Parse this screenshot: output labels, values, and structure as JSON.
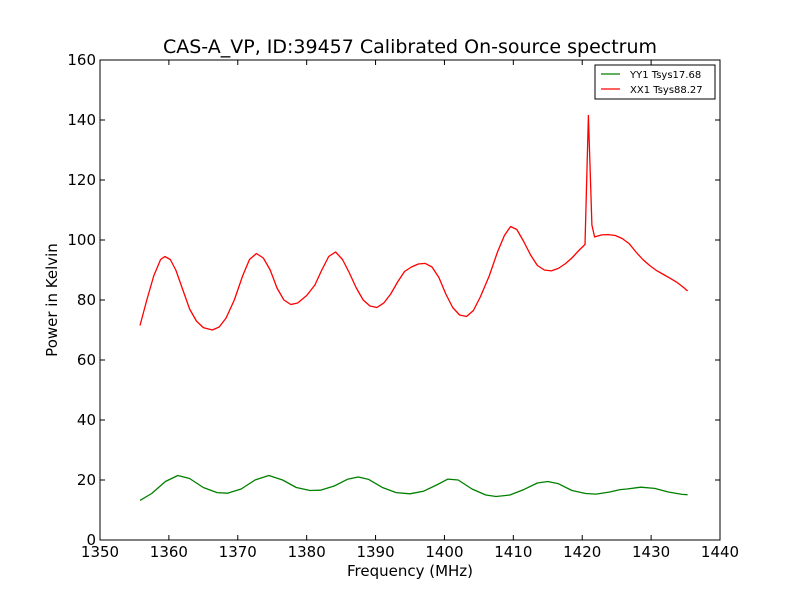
{
  "chart_data": {
    "type": "line",
    "title": "CAS-A_VP, ID:39457 Calibrated On-source spectrum",
    "xlabel": "Frequency (MHz)",
    "ylabel": "Power in Kelvin",
    "xlim": [
      1350,
      1440
    ],
    "ylim": [
      0,
      160
    ],
    "x_ticks": [
      "1350",
      "1360",
      "1370",
      "1380",
      "1390",
      "1400",
      "1410",
      "1420",
      "1430",
      "1440"
    ],
    "y_ticks": [
      "0",
      "20",
      "40",
      "60",
      "80",
      "100",
      "120",
      "140",
      "160"
    ],
    "grid": false,
    "legend_position": "top-right",
    "series": [
      {
        "name": "YY1 Tsys17.68",
        "color": "#008000",
        "points": [
          [
            1355.8,
            13.2
          ],
          [
            1357.5,
            15.5
          ],
          [
            1359.5,
            19.5
          ],
          [
            1361.3,
            21.5
          ],
          [
            1363.0,
            20.5
          ],
          [
            1365.0,
            17.5
          ],
          [
            1367.0,
            15.8
          ],
          [
            1368.5,
            15.6
          ],
          [
            1370.5,
            17.0
          ],
          [
            1372.5,
            20.0
          ],
          [
            1374.5,
            21.5
          ],
          [
            1376.5,
            20.0
          ],
          [
            1378.5,
            17.5
          ],
          [
            1380.5,
            16.5
          ],
          [
            1382.0,
            16.6
          ],
          [
            1384.0,
            18.0
          ],
          [
            1386.0,
            20.3
          ],
          [
            1387.5,
            21.0
          ],
          [
            1389.0,
            20.2
          ],
          [
            1391.0,
            17.5
          ],
          [
            1393.0,
            15.8
          ],
          [
            1395.0,
            15.4
          ],
          [
            1397.0,
            16.3
          ],
          [
            1399.0,
            18.5
          ],
          [
            1400.5,
            20.3
          ],
          [
            1402.0,
            20.0
          ],
          [
            1404.0,
            17.0
          ],
          [
            1406.0,
            15.0
          ],
          [
            1407.5,
            14.5
          ],
          [
            1409.5,
            15.0
          ],
          [
            1411.5,
            16.8
          ],
          [
            1413.5,
            19.0
          ],
          [
            1415.0,
            19.5
          ],
          [
            1416.5,
            18.8
          ],
          [
            1418.5,
            16.5
          ],
          [
            1420.5,
            15.5
          ],
          [
            1422.0,
            15.3
          ],
          [
            1424.0,
            16.0
          ],
          [
            1425.5,
            16.8
          ],
          [
            1426.5,
            17.0
          ],
          [
            1428.5,
            17.6
          ],
          [
            1430.5,
            17.2
          ],
          [
            1432.5,
            16.0
          ],
          [
            1434.5,
            15.2
          ],
          [
            1435.3,
            15.1
          ]
        ]
      },
      {
        "name": "XX1 Tsys88.27",
        "color": "#ff0000",
        "points": [
          [
            1355.8,
            71.5
          ],
          [
            1356.8,
            80.0
          ],
          [
            1357.8,
            88.0
          ],
          [
            1358.8,
            93.5
          ],
          [
            1359.4,
            94.5
          ],
          [
            1360.2,
            93.5
          ],
          [
            1361.0,
            90.0
          ],
          [
            1362.0,
            83.5
          ],
          [
            1363.0,
            77.0
          ],
          [
            1364.0,
            73.0
          ],
          [
            1365.0,
            70.8
          ],
          [
            1366.3,
            70.0
          ],
          [
            1367.3,
            71.0
          ],
          [
            1368.3,
            74.0
          ],
          [
            1369.5,
            80.0
          ],
          [
            1370.7,
            88.0
          ],
          [
            1371.7,
            93.5
          ],
          [
            1372.7,
            95.5
          ],
          [
            1373.7,
            94.0
          ],
          [
            1374.7,
            90.0
          ],
          [
            1375.7,
            84.0
          ],
          [
            1376.7,
            80.0
          ],
          [
            1377.7,
            78.5
          ],
          [
            1378.7,
            79.0
          ],
          [
            1380.0,
            81.5
          ],
          [
            1381.2,
            85.0
          ],
          [
            1382.2,
            90.0
          ],
          [
            1383.2,
            94.5
          ],
          [
            1384.2,
            96.0
          ],
          [
            1385.2,
            93.5
          ],
          [
            1386.2,
            89.0
          ],
          [
            1387.2,
            84.0
          ],
          [
            1388.2,
            80.0
          ],
          [
            1389.2,
            78.0
          ],
          [
            1390.2,
            77.5
          ],
          [
            1391.2,
            79.0
          ],
          [
            1392.2,
            82.0
          ],
          [
            1393.2,
            86.0
          ],
          [
            1394.2,
            89.5
          ],
          [
            1395.2,
            91.0
          ],
          [
            1396.2,
            92.0
          ],
          [
            1397.2,
            92.2
          ],
          [
            1398.2,
            91.0
          ],
          [
            1399.2,
            87.5
          ],
          [
            1400.2,
            82.0
          ],
          [
            1401.2,
            77.5
          ],
          [
            1402.2,
            75.0
          ],
          [
            1403.2,
            74.5
          ],
          [
            1404.2,
            76.5
          ],
          [
            1405.2,
            81.0
          ],
          [
            1406.5,
            88.0
          ],
          [
            1407.7,
            96.0
          ],
          [
            1408.7,
            101.5
          ],
          [
            1409.6,
            104.5
          ],
          [
            1410.5,
            103.5
          ],
          [
            1411.5,
            99.5
          ],
          [
            1412.5,
            95.0
          ],
          [
            1413.5,
            91.5
          ],
          [
            1414.5,
            90.0
          ],
          [
            1415.5,
            89.7
          ],
          [
            1416.5,
            90.5
          ],
          [
            1417.5,
            92.0
          ],
          [
            1418.5,
            94.0
          ],
          [
            1419.5,
            96.5
          ],
          [
            1420.4,
            98.5
          ],
          [
            1420.9,
            141.5
          ],
          [
            1421.4,
            105.0
          ],
          [
            1421.8,
            101.0
          ],
          [
            1422.8,
            101.7
          ],
          [
            1423.8,
            101.8
          ],
          [
            1424.8,
            101.5
          ],
          [
            1425.8,
            100.5
          ],
          [
            1426.8,
            98.8
          ],
          [
            1427.8,
            96.0
          ],
          [
            1428.8,
            93.5
          ],
          [
            1429.8,
            91.5
          ],
          [
            1430.8,
            89.8
          ],
          [
            1431.8,
            88.5
          ],
          [
            1432.8,
            87.2
          ],
          [
            1433.8,
            85.8
          ],
          [
            1434.8,
            84.0
          ],
          [
            1435.3,
            83.0
          ]
        ]
      }
    ]
  }
}
